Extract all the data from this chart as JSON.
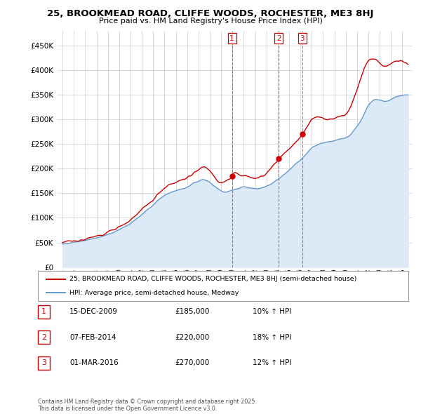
{
  "title": "25, BROOKMEAD ROAD, CLIFFE WOODS, ROCHESTER, ME3 8HJ",
  "subtitle": "Price paid vs. HM Land Registry's House Price Index (HPI)",
  "sale_color": "#cc0000",
  "hpi_color": "#6699cc",
  "hpi_fill_color": "#dce9f7",
  "transaction_color": "#cc0000",
  "transactions": [
    {
      "num": 1,
      "date": "15-DEC-2009",
      "price": 185000,
      "hpi_pct": "10%",
      "x": 2009.96
    },
    {
      "num": 2,
      "date": "07-FEB-2014",
      "price": 220000,
      "hpi_pct": "18%",
      "x": 2014.09
    },
    {
      "num": 3,
      "date": "01-MAR-2016",
      "price": 270000,
      "hpi_pct": "12%",
      "x": 2016.17
    }
  ],
  "legend_sale_label": "25, BROOKMEAD ROAD, CLIFFE WOODS, ROCHESTER, ME3 8HJ (semi-detached house)",
  "legend_hpi_label": "HPI: Average price, semi-detached house, Medway",
  "footer": "Contains HM Land Registry data © Crown copyright and database right 2025.\nThis data is licensed under the Open Government Licence v3.0.",
  "table_rows": [
    [
      "1",
      "15-DEC-2009",
      "£185,000",
      "10% ↑ HPI"
    ],
    [
      "2",
      "07-FEB-2014",
      "£220,000",
      "18% ↑ HPI"
    ],
    [
      "3",
      "01-MAR-2016",
      "£270,000",
      "12% ↑ HPI"
    ]
  ],
  "ytick_vals": [
    0,
    50000,
    100000,
    150000,
    200000,
    250000,
    300000,
    350000,
    400000,
    450000
  ],
  "ytick_labels": [
    "£0",
    "£50K",
    "£100K",
    "£150K",
    "£200K",
    "£250K",
    "£300K",
    "£350K",
    "£400K",
    "£450K"
  ],
  "ylim": [
    0,
    480000
  ],
  "xlim": [
    1994.5,
    2025.9
  ]
}
